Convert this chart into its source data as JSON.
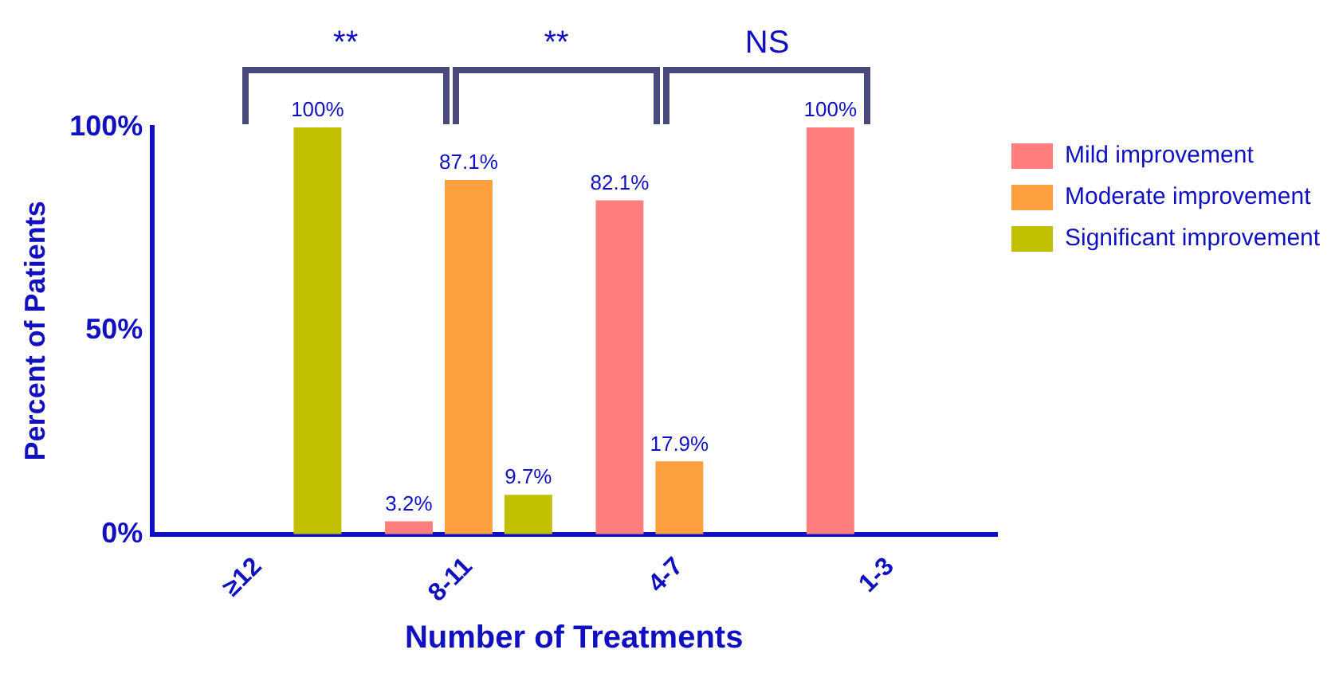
{
  "chart_data": {
    "type": "bar",
    "xlabel": "Number of Treatments",
    "ylabel": "Percent of Patients",
    "categories": [
      "≥12",
      "8-11",
      "4-7",
      "1-3"
    ],
    "series": [
      {
        "name": "Mild improvement",
        "color": "#ff7f7f",
        "values": [
          0,
          3.2,
          82.1,
          100
        ],
        "value_labels": [
          null,
          "3.2%",
          "82.1%",
          "100%"
        ]
      },
      {
        "name": "Moderate improvement",
        "color": "#ffa040",
        "values": [
          0,
          87.1,
          17.9,
          0
        ],
        "value_labels": [
          null,
          "87.1%",
          "17.9%",
          null
        ]
      },
      {
        "name": "Significant improvement",
        "color": "#c0c000",
        "values": [
          100,
          9.7,
          0,
          0
        ],
        "value_labels": [
          "100%",
          "9.7%",
          null,
          null
        ]
      }
    ],
    "ylim": [
      0,
      100
    ],
    "yticks": [
      {
        "value": 0,
        "label": "0%"
      },
      {
        "value": 50,
        "label": "50%"
      },
      {
        "value": 100,
        "label": "100%"
      }
    ],
    "annotations": [
      "**",
      "**",
      "NS"
    ],
    "grid": false,
    "legend": "right"
  }
}
